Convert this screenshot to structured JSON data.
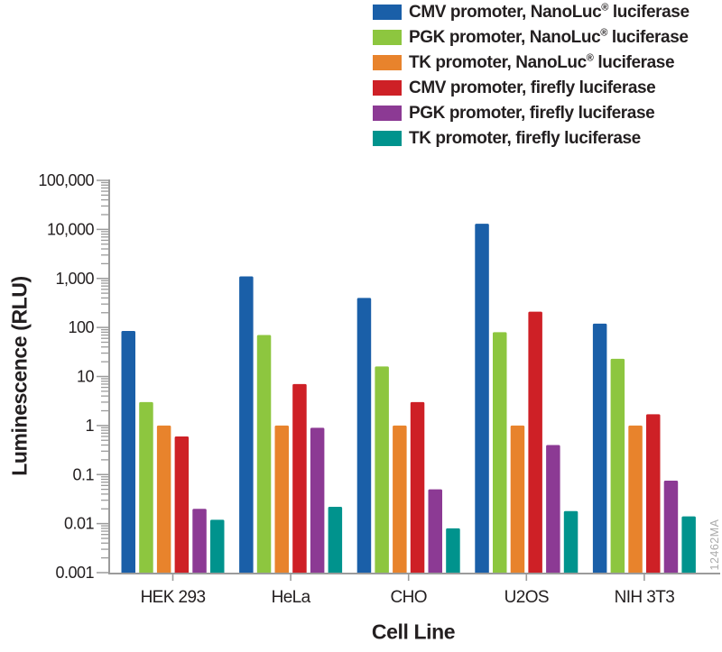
{
  "figure": {
    "watermark": "12462MA"
  },
  "chart_data": {
    "type": "bar",
    "title": "",
    "xlabel": "Cell Line",
    "ylabel": "Luminescence (RLU)",
    "yscale": "log",
    "ylim": [
      0.001,
      100000
    ],
    "grid": false,
    "legend_position": "top-right",
    "axis_color": "#9B9B9B",
    "text_color": "#231F20",
    "ytick_labels": [
      "100,000",
      "10,000",
      "1,000",
      "100",
      "10",
      "1",
      "0.1",
      "0.01",
      "0.001"
    ],
    "categories": [
      "HEK 293",
      "HeLa",
      "CHO",
      "U2OS",
      "NIH 3T3"
    ],
    "series": [
      {
        "label": "CMV promoter, NanoLuc® luciferase",
        "color": "#1A5FA8",
        "values": [
          85,
          1100,
          400,
          13000,
          120
        ]
      },
      {
        "label": "PGK promoter, NanoLuc® luciferase",
        "color": "#8DC63F",
        "values": [
          3,
          70,
          16,
          80,
          23
        ]
      },
      {
        "label": "TK promoter, NanoLuc® luciferase",
        "color": "#E8832C",
        "values": [
          1,
          1,
          1,
          1,
          1
        ]
      },
      {
        "label": "CMV promoter, firefly luciferase",
        "color": "#CE2026",
        "values": [
          0.6,
          7,
          3,
          210,
          1.7
        ]
      },
      {
        "label": "PGK promoter, firefly luciferase",
        "color": "#8C3A94",
        "values": [
          0.02,
          0.9,
          0.05,
          0.4,
          0.075
        ]
      },
      {
        "label": "TK promoter, firefly luciferase",
        "color": "#00938D",
        "values": [
          0.012,
          0.022,
          0.008,
          0.018,
          0.014
        ]
      }
    ]
  }
}
